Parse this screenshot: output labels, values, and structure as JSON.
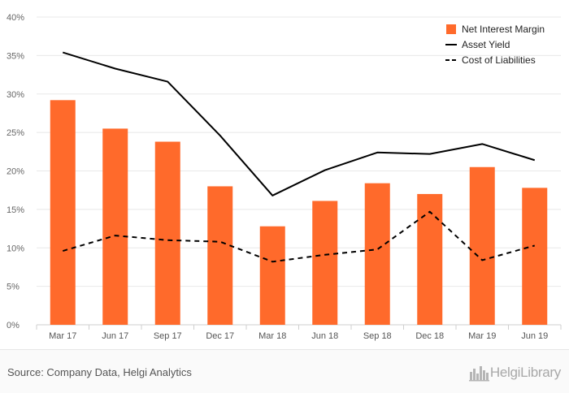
{
  "chart_data": {
    "type": "bar",
    "categories": [
      "Mar 17",
      "Jun 17",
      "Sep 17",
      "Dec 17",
      "Mar 18",
      "Jun 18",
      "Sep 18",
      "Dec 18",
      "Mar 19",
      "Jun 19"
    ],
    "series": [
      {
        "name": "Net Interest Margin",
        "kind": "bar",
        "color": "#ff6a2b",
        "values": [
          29.2,
          25.5,
          23.8,
          18.0,
          12.8,
          16.1,
          18.4,
          17.0,
          20.5,
          17.8
        ]
      },
      {
        "name": "Asset Yield",
        "kind": "line",
        "style": "solid",
        "color": "#000000",
        "values": [
          35.4,
          33.3,
          31.6,
          24.6,
          16.8,
          20.1,
          22.4,
          22.2,
          23.5,
          21.4
        ]
      },
      {
        "name": "Cost of Liabilities",
        "kind": "line",
        "style": "dashed",
        "color": "#000000",
        "values": [
          9.6,
          11.6,
          11.0,
          10.8,
          8.2,
          9.1,
          9.8,
          14.7,
          8.4,
          10.3
        ]
      }
    ],
    "ylim": [
      0,
      40
    ],
    "yticks": [
      "0%",
      "5%",
      "10%",
      "15%",
      "20%",
      "25%",
      "30%",
      "35%",
      "40%"
    ],
    "grid": true,
    "legend_position": "top-right",
    "xlabel": "",
    "ylabel": ""
  },
  "footer": {
    "source": "Source: Company Data, Helgi Analytics",
    "logo_text": "HelgiLibrary",
    "logo_icon": "city-skyline-icon"
  }
}
